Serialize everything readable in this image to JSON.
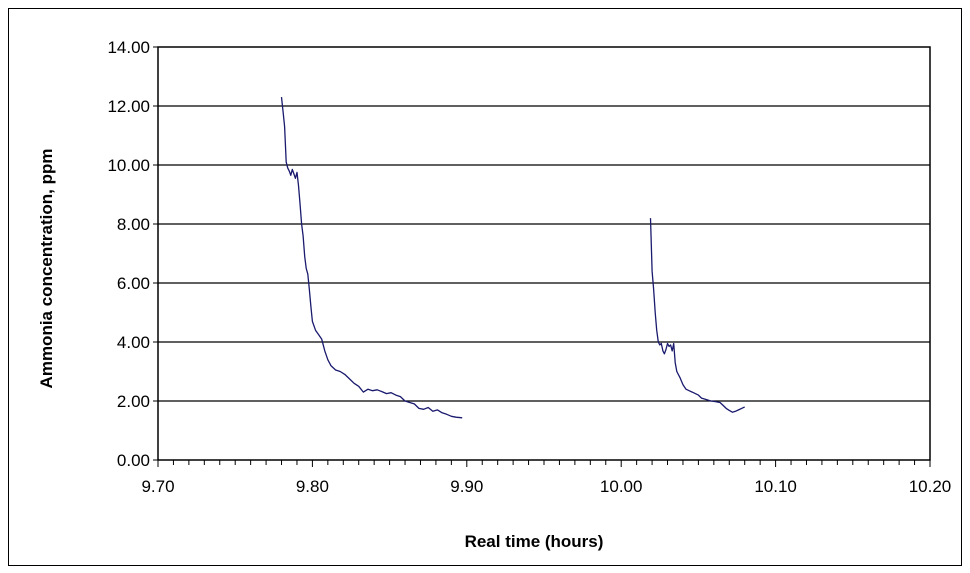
{
  "chart_data": {
    "type": "line",
    "title": "",
    "xlabel": "Real time (hours)",
    "ylabel": "Ammonia concentration, ppm",
    "xlim": [
      9.7,
      10.2
    ],
    "ylim": [
      0.0,
      14.0
    ],
    "x_ticks": [
      "9.70",
      "9.80",
      "9.90",
      "10.00",
      "10.10",
      "10.20"
    ],
    "y_ticks": [
      "0.00",
      "2.00",
      "4.00",
      "6.00",
      "8.00",
      "10.00",
      "12.00",
      "14.00"
    ],
    "grid": "horizontal",
    "legend": "none",
    "series": [
      {
        "color": "#1a1a6e",
        "points": [
          [
            9.78,
            12.3
          ],
          [
            9.781,
            11.8
          ],
          [
            9.782,
            11.3
          ],
          [
            9.783,
            10.1
          ],
          [
            9.784,
            9.9
          ],
          [
            9.785,
            9.8
          ],
          [
            9.786,
            9.65
          ],
          [
            9.787,
            9.85
          ],
          [
            9.788,
            9.7
          ],
          [
            9.789,
            9.55
          ],
          [
            9.79,
            9.75
          ],
          [
            9.791,
            9.3
          ],
          [
            9.792,
            8.7
          ],
          [
            9.793,
            8.0
          ],
          [
            9.794,
            7.6
          ],
          [
            9.795,
            6.9
          ],
          [
            9.796,
            6.5
          ],
          [
            9.797,
            6.3
          ],
          [
            9.798,
            5.8
          ],
          [
            9.799,
            5.2
          ],
          [
            9.8,
            4.7
          ],
          [
            9.802,
            4.4
          ],
          [
            9.804,
            4.25
          ],
          [
            9.806,
            4.1
          ],
          [
            9.808,
            3.7
          ],
          [
            9.81,
            3.4
          ],
          [
            9.812,
            3.2
          ],
          [
            9.815,
            3.05
          ],
          [
            9.818,
            3.0
          ],
          [
            9.821,
            2.9
          ],
          [
            9.824,
            2.75
          ],
          [
            9.827,
            2.6
          ],
          [
            9.83,
            2.5
          ],
          [
            9.833,
            2.3
          ],
          [
            9.836,
            2.4
          ],
          [
            9.839,
            2.35
          ],
          [
            9.842,
            2.38
          ],
          [
            9.845,
            2.32
          ],
          [
            9.848,
            2.25
          ],
          [
            9.851,
            2.28
          ],
          [
            9.854,
            2.2
          ],
          [
            9.857,
            2.15
          ],
          [
            9.86,
            2.0
          ],
          [
            9.863,
            1.95
          ],
          [
            9.866,
            1.9
          ],
          [
            9.869,
            1.75
          ],
          [
            9.872,
            1.72
          ],
          [
            9.875,
            1.78
          ],
          [
            9.878,
            1.65
          ],
          [
            9.881,
            1.7
          ],
          [
            9.884,
            1.6
          ],
          [
            9.887,
            1.55
          ],
          [
            9.89,
            1.48
          ],
          [
            9.893,
            1.45
          ],
          [
            9.897,
            1.43
          ]
        ]
      },
      {
        "color": "#1a1a6e",
        "points": [
          [
            10.019,
            8.2
          ],
          [
            10.02,
            6.4
          ],
          [
            10.021,
            5.8
          ],
          [
            10.022,
            5.0
          ],
          [
            10.023,
            4.4
          ],
          [
            10.024,
            4.0
          ],
          [
            10.025,
            3.9
          ],
          [
            10.026,
            3.95
          ],
          [
            10.027,
            3.7
          ],
          [
            10.028,
            3.6
          ],
          [
            10.029,
            3.75
          ],
          [
            10.03,
            3.95
          ],
          [
            10.031,
            3.85
          ],
          [
            10.032,
            3.9
          ],
          [
            10.033,
            3.7
          ],
          [
            10.034,
            3.95
          ],
          [
            10.035,
            3.3
          ],
          [
            10.036,
            3.0
          ],
          [
            10.038,
            2.8
          ],
          [
            10.04,
            2.55
          ],
          [
            10.042,
            2.4
          ],
          [
            10.044,
            2.35
          ],
          [
            10.046,
            2.3
          ],
          [
            10.048,
            2.25
          ],
          [
            10.05,
            2.2
          ],
          [
            10.052,
            2.1
          ],
          [
            10.055,
            2.05
          ],
          [
            10.058,
            2.0
          ],
          [
            10.061,
            1.98
          ],
          [
            10.064,
            1.95
          ],
          [
            10.066,
            1.85
          ],
          [
            10.068,
            1.75
          ],
          [
            10.07,
            1.68
          ],
          [
            10.072,
            1.62
          ],
          [
            10.074,
            1.65
          ],
          [
            10.076,
            1.7
          ],
          [
            10.078,
            1.75
          ],
          [
            10.08,
            1.8
          ]
        ]
      }
    ]
  }
}
